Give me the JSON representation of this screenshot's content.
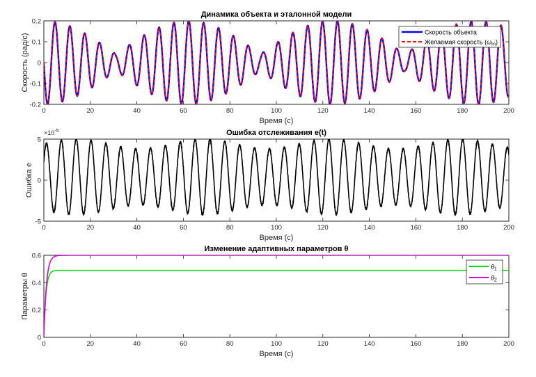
{
  "chart_data": [
    {
      "type": "line",
      "title": "Динамика объекта и эталонной модели",
      "xlabel": "Время (с)",
      "ylabel": "Скорость (рад/с)",
      "xlim": [
        0,
        200
      ],
      "ylim": [
        -0.2,
        0.2
      ],
      "xticks": [
        0,
        20,
        40,
        60,
        80,
        100,
        120,
        140,
        160,
        180,
        200
      ],
      "xtick_labels": [
        "0",
        "20",
        "40",
        "60",
        "80",
        "100",
        "120",
        "140",
        "160",
        "180",
        "200"
      ],
      "yticks": [
        -0.2,
        -0.1,
        0,
        0.1,
        0.2
      ],
      "ytick_labels": [
        "-0.2",
        "-0.1",
        "0",
        "0.1",
        "0.2"
      ],
      "legend_position": "top-right",
      "grid": false,
      "series": [
        {
          "name": "Скорость объекта",
          "color": "#0000ff",
          "style": "solid",
          "model": {
            "form": "a*sin(2*pi*f1*t)*(0.2+0.8*|cos(pi*f2*t)|)",
            "a": 0.2,
            "f1": 0.1564,
            "f2": 0.0161,
            "t_start": 0,
            "t_end": 200
          }
        },
        {
          "name": "Желаемая скорость (ω_m)",
          "name_parts": {
            "main": "Желаемая скорость (",
            "symbol": "ω",
            "sub": "m",
            "close": ")"
          },
          "color": "#ff0000",
          "style": "dashed",
          "model": {
            "form": "a*sin(2*pi*f1*t)*(0.2+0.8*|cos(pi*f2*t)|)",
            "a": 0.2,
            "f1": 0.1564,
            "f2": 0.0161,
            "t_start": 0,
            "t_end": 200
          }
        }
      ]
    },
    {
      "type": "line",
      "title": "Ошибка отслеживания e(t)",
      "xlabel": "Время (с)",
      "ylabel": "Ошибка e",
      "exponent_label": {
        "base": "×10",
        "power": "-5"
      },
      "xlim": [
        0,
        200
      ],
      "ylim": [
        -5,
        5
      ],
      "xticks": [
        0,
        20,
        40,
        60,
        80,
        100,
        120,
        140,
        160,
        180,
        200
      ],
      "xtick_labels": [
        "0",
        "20",
        "40",
        "60",
        "80",
        "100",
        "120",
        "140",
        "160",
        "180",
        "200"
      ],
      "yticks": [
        -5,
        0,
        5
      ],
      "ytick_labels": [
        "-5",
        "0",
        "5"
      ],
      "grid": false,
      "series": [
        {
          "color": "#000000",
          "style": "solid",
          "model": {
            "form": "a*sin(2*pi*f*t+phase) with slowly varying amplitude",
            "mean_amplitude": 4.0,
            "amplitude_variation": 0.6,
            "offset": 0.4,
            "f": 0.1564,
            "t_start": 0,
            "t_end": 200
          }
        }
      ]
    },
    {
      "type": "line",
      "title": "Изменение адаптивных параметров θ",
      "xlabel": "Время (с)",
      "ylabel": "Параметры θ",
      "xlim": [
        0,
        200
      ],
      "ylim": [
        0,
        0.6
      ],
      "xticks": [
        0,
        20,
        40,
        60,
        80,
        100,
        120,
        140,
        160,
        180,
        200
      ],
      "xtick_labels": [
        "0",
        "20",
        "40",
        "60",
        "80",
        "100",
        "120",
        "140",
        "160",
        "180",
        "200"
      ],
      "yticks": [
        0,
        0.2,
        0.4,
        0.6
      ],
      "ytick_labels": [
        "0",
        "0.2",
        "0.4",
        "0.6"
      ],
      "legend_position": "top-right",
      "grid": false,
      "series": [
        {
          "name": "θ1",
          "name_parts": {
            "symbol": "θ",
            "sub": "1"
          },
          "color": "#00dd00",
          "style": "solid",
          "model": {
            "form": "final*(1-exp(-t/tau))",
            "final": 0.49,
            "tau": 0.9
          }
        },
        {
          "name": "θ2",
          "name_parts": {
            "symbol": "θ",
            "sub": "2"
          },
          "color": "#dd00dd",
          "style": "solid",
          "model": {
            "form": "final*(1-exp(-t/tau))",
            "final": 0.6,
            "tau": 1.1
          }
        }
      ]
    }
  ]
}
